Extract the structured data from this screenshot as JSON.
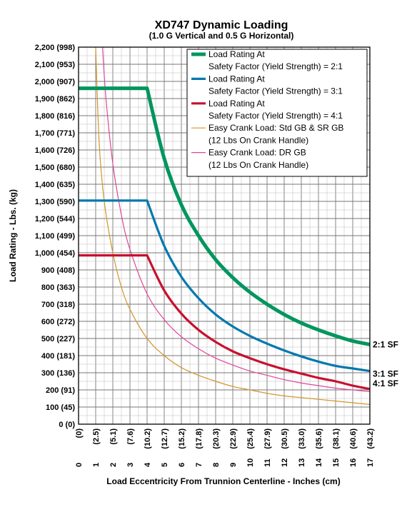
{
  "chart_data": {
    "type": "line",
    "title": "XD747 Dynamic Loading",
    "subtitle": "(1.0 G Vertical and 0.5 G Horizontal)",
    "ylabel": "Load Rating - Lbs. (kg)",
    "xlabel": "Load Eccentricity From Trunnion Centerline - Inches (cm)",
    "xlim": [
      0,
      17
    ],
    "ylim": [
      0,
      2200
    ],
    "grid": true,
    "legend_position": "top-right",
    "y_ticks": [
      {
        "value": 0,
        "label": "0 (0)"
      },
      {
        "value": 100,
        "label": "100 (45)"
      },
      {
        "value": 200,
        "label": "200 (91)"
      },
      {
        "value": 300,
        "label": "300 (136)"
      },
      {
        "value": 400,
        "label": "400 (181)"
      },
      {
        "value": 500,
        "label": "500 (227)"
      },
      {
        "value": 600,
        "label": "600 (272)"
      },
      {
        "value": 700,
        "label": "700 (318)"
      },
      {
        "value": 800,
        "label": "800 (363)"
      },
      {
        "value": 900,
        "label": "900 (408)"
      },
      {
        "value": 1000,
        "label": "1,000 (454)"
      },
      {
        "value": 1100,
        "label": "1,100 (499)"
      },
      {
        "value": 1200,
        "label": "1,200 (544)"
      },
      {
        "value": 1300,
        "label": "1,300 (590)"
      },
      {
        "value": 1400,
        "label": "1,400 (635)"
      },
      {
        "value": 1500,
        "label": "1,500 (680)"
      },
      {
        "value": 1600,
        "label": "1,600 (726)"
      },
      {
        "value": 1700,
        "label": "1,700 (771)"
      },
      {
        "value": 1800,
        "label": "1,800 (816)"
      },
      {
        "value": 1900,
        "label": "1,900 (862)"
      },
      {
        "value": 2000,
        "label": "2,000 (907)"
      },
      {
        "value": 2100,
        "label": "2,100 (953)"
      },
      {
        "value": 2200,
        "label": "2,200 (998)"
      }
    ],
    "x_ticks": [
      {
        "value": 0,
        "label": "0",
        "cm": "(0)"
      },
      {
        "value": 1,
        "label": "1",
        "cm": "(2.5)"
      },
      {
        "value": 2,
        "label": "2",
        "cm": "(5.1)"
      },
      {
        "value": 3,
        "label": "3",
        "cm": "(7.6)"
      },
      {
        "value": 4,
        "label": "4",
        "cm": "(10.2)"
      },
      {
        "value": 5,
        "label": "5",
        "cm": "(12.7)"
      },
      {
        "value": 6,
        "label": "6",
        "cm": "(15.2)"
      },
      {
        "value": 7,
        "label": "7",
        "cm": "(17.8)"
      },
      {
        "value": 8,
        "label": "8",
        "cm": "(20.3)"
      },
      {
        "value": 9,
        "label": "9",
        "cm": "(22.9)"
      },
      {
        "value": 10,
        "label": "10",
        "cm": "(25.4)"
      },
      {
        "value": 11,
        "label": "11",
        "cm": "(27.9)"
      },
      {
        "value": 12,
        "label": "12",
        "cm": "(30.5)"
      },
      {
        "value": 13,
        "label": "13",
        "cm": "(33.0)"
      },
      {
        "value": 14,
        "label": "14",
        "cm": "(35.6)"
      },
      {
        "value": 15,
        "label": "15",
        "cm": "(38.1)"
      },
      {
        "value": 16,
        "label": "16",
        "cm": "(40.6)"
      },
      {
        "value": 17,
        "label": "17",
        "cm": "(43.2)"
      }
    ],
    "series": [
      {
        "name": "Load Rating At Safety Factor (Yield Strength) = 2:1",
        "legend_lines": [
          "Load Rating At",
          "Safety Factor (Yield Strength) = 2:1"
        ],
        "end_label": "2:1 SF",
        "color": "#00965e",
        "weight": "heavy",
        "x": [
          0,
          4,
          5,
          6,
          7,
          8,
          9,
          10,
          11,
          12,
          13,
          14,
          15,
          16,
          17
        ],
        "y": [
          1960,
          1960,
          1550,
          1280,
          1100,
          960,
          855,
          770,
          700,
          640,
          590,
          550,
          515,
          485,
          465
        ]
      },
      {
        "name": "Load Rating At Safety Factor (Yield Strength) = 3:1",
        "legend_lines": [
          "Load Rating At",
          "Safety Factor (Yield Strength) = 3:1"
        ],
        "end_label": "3:1 SF",
        "color": "#0078ae",
        "weight": "medium",
        "x": [
          0,
          4,
          5,
          6,
          7,
          8,
          9,
          10,
          11,
          12,
          13,
          14,
          15,
          16,
          17
        ],
        "y": [
          1305,
          1305,
          1040,
          860,
          735,
          640,
          570,
          515,
          470,
          430,
          395,
          365,
          340,
          325,
          310
        ]
      },
      {
        "name": "Load Rating At Safety Factor (Yield Strength) = 4:1",
        "legend_lines": [
          "Load Rating At",
          "Safety Factor (Yield Strength) = 4:1"
        ],
        "end_label": "4:1 SF",
        "color": "#c8102e",
        "weight": "medium",
        "x": [
          0,
          4,
          5,
          6,
          7,
          8,
          9,
          10,
          11,
          12,
          13,
          14,
          15,
          16,
          17
        ],
        "y": [
          985,
          985,
          780,
          645,
          550,
          480,
          425,
          385,
          350,
          320,
          295,
          270,
          250,
          225,
          205
        ]
      },
      {
        "name": "Easy Crank Load: Std GB & SR GB (12 Lbs On Crank Handle)",
        "legend_lines": [
          "Easy Crank Load: Std GB & SR GB",
          "(12 Lbs On Crank Handle)"
        ],
        "color": "#d4952a",
        "weight": "thin",
        "x": [
          1,
          1.2,
          1.5,
          2,
          2.5,
          3,
          4,
          5,
          6,
          7,
          8,
          9,
          10,
          11,
          12,
          13,
          14,
          15,
          16,
          17
        ],
        "y": [
          2200,
          1650,
          1300,
          1000,
          800,
          670,
          500,
          400,
          330,
          285,
          250,
          220,
          200,
          180,
          165,
          155,
          145,
          135,
          125,
          115
        ]
      },
      {
        "name": "Easy Crank Load: DR GB (12 Lbs On Crank Handle)",
        "legend_lines": [
          "Easy Crank Load: DR GB",
          "(12 Lbs On Crank Handle)"
        ],
        "color": "#e0459a",
        "weight": "thin",
        "x": [
          1.4,
          1.6,
          2,
          2.5,
          3,
          4,
          5,
          6,
          7,
          8,
          9,
          10,
          11,
          12,
          13,
          14,
          15,
          16,
          17
        ],
        "y": [
          2200,
          1900,
          1520,
          1220,
          1020,
          760,
          610,
          510,
          440,
          385,
          345,
          310,
          285,
          260,
          240,
          225,
          210,
          200,
          190
        ]
      }
    ]
  }
}
